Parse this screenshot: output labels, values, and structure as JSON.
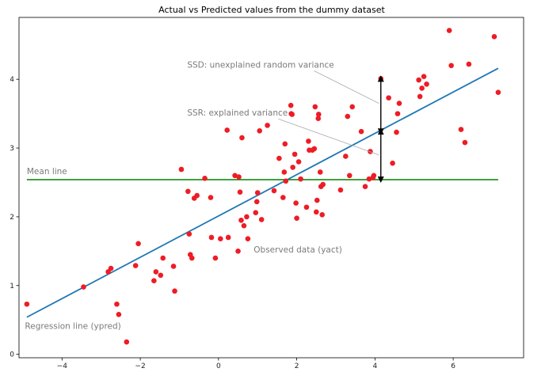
{
  "chart_data": {
    "type": "scatter",
    "title": "Actual vs Predicted values from the dummy dataset",
    "xlabel": "",
    "ylabel": "",
    "xlim": [
      -5.1,
      7.8
    ],
    "ylim": [
      -0.05,
      4.9
    ],
    "x_ticks": [
      -4,
      -2,
      0,
      2,
      4,
      6
    ],
    "y_ticks": [
      0,
      1,
      2,
      3,
      4
    ],
    "x_tick_labels": [
      "−4",
      "−2",
      "0",
      "2",
      "4",
      "6"
    ],
    "y_tick_labels": [
      "0",
      "1",
      "2",
      "3",
      "4"
    ],
    "grid": false,
    "colors": {
      "points": "#ee1c25",
      "regression": "#1f77b4",
      "mean": "#008000",
      "arrows": "#000000",
      "annotation_text": "#7a7a7a",
      "leader_lines": "#aaaaaa"
    },
    "points": [
      {
        "x": -4.9,
        "y": 0.73
      },
      {
        "x": -3.45,
        "y": 0.98
      },
      {
        "x": -2.82,
        "y": 1.2
      },
      {
        "x": -2.75,
        "y": 1.25
      },
      {
        "x": -2.6,
        "y": 0.73
      },
      {
        "x": -2.55,
        "y": 0.58
      },
      {
        "x": -2.35,
        "y": 0.18
      },
      {
        "x": -2.12,
        "y": 1.29
      },
      {
        "x": -2.05,
        "y": 1.61
      },
      {
        "x": -1.65,
        "y": 1.07
      },
      {
        "x": -1.6,
        "y": 1.2
      },
      {
        "x": -1.48,
        "y": 1.15
      },
      {
        "x": -1.42,
        "y": 1.4
      },
      {
        "x": -1.15,
        "y": 1.28
      },
      {
        "x": -1.12,
        "y": 0.92
      },
      {
        "x": -0.95,
        "y": 2.69
      },
      {
        "x": -0.78,
        "y": 2.37
      },
      {
        "x": -0.75,
        "y": 1.75
      },
      {
        "x": -0.72,
        "y": 1.45
      },
      {
        "x": -0.68,
        "y": 1.4
      },
      {
        "x": -0.62,
        "y": 2.27
      },
      {
        "x": -0.55,
        "y": 2.31
      },
      {
        "x": -0.35,
        "y": 2.56
      },
      {
        "x": -0.2,
        "y": 2.28
      },
      {
        "x": -0.18,
        "y": 1.7
      },
      {
        "x": -0.08,
        "y": 1.4
      },
      {
        "x": 0.05,
        "y": 1.68
      },
      {
        "x": 0.22,
        "y": 3.26
      },
      {
        "x": 0.25,
        "y": 1.7
      },
      {
        "x": 0.42,
        "y": 2.6
      },
      {
        "x": 0.5,
        "y": 1.5
      },
      {
        "x": 0.52,
        "y": 2.58
      },
      {
        "x": 0.55,
        "y": 2.36
      },
      {
        "x": 0.58,
        "y": 1.95
      },
      {
        "x": 0.6,
        "y": 3.15
      },
      {
        "x": 0.65,
        "y": 1.87
      },
      {
        "x": 0.72,
        "y": 2.0
      },
      {
        "x": 0.75,
        "y": 1.68
      },
      {
        "x": 0.95,
        "y": 2.06
      },
      {
        "x": 0.98,
        "y": 2.22
      },
      {
        "x": 1.0,
        "y": 2.35
      },
      {
        "x": 1.05,
        "y": 3.25
      },
      {
        "x": 1.1,
        "y": 1.96
      },
      {
        "x": 1.25,
        "y": 3.33
      },
      {
        "x": 1.42,
        "y": 2.38
      },
      {
        "x": 1.55,
        "y": 2.85
      },
      {
        "x": 1.65,
        "y": 2.28
      },
      {
        "x": 1.68,
        "y": 2.65
      },
      {
        "x": 1.7,
        "y": 3.06
      },
      {
        "x": 1.72,
        "y": 2.52
      },
      {
        "x": 1.85,
        "y": 3.62
      },
      {
        "x": 1.86,
        "y": 3.5
      },
      {
        "x": 1.88,
        "y": 3.49
      },
      {
        "x": 1.9,
        "y": 2.72
      },
      {
        "x": 1.95,
        "y": 2.91
      },
      {
        "x": 1.98,
        "y": 2.2
      },
      {
        "x": 2.0,
        "y": 1.98
      },
      {
        "x": 2.05,
        "y": 2.8
      },
      {
        "x": 2.1,
        "y": 2.55
      },
      {
        "x": 2.25,
        "y": 2.14
      },
      {
        "x": 2.3,
        "y": 3.1
      },
      {
        "x": 2.32,
        "y": 2.97
      },
      {
        "x": 2.4,
        "y": 2.97
      },
      {
        "x": 2.45,
        "y": 2.99
      },
      {
        "x": 2.47,
        "y": 3.6
      },
      {
        "x": 2.5,
        "y": 2.07
      },
      {
        "x": 2.52,
        "y": 2.24
      },
      {
        "x": 2.55,
        "y": 3.43
      },
      {
        "x": 2.56,
        "y": 3.49
      },
      {
        "x": 2.6,
        "y": 2.65
      },
      {
        "x": 2.62,
        "y": 2.44
      },
      {
        "x": 2.65,
        "y": 2.03
      },
      {
        "x": 2.67,
        "y": 2.47
      },
      {
        "x": 3.12,
        "y": 2.39
      },
      {
        "x": 3.25,
        "y": 2.88
      },
      {
        "x": 3.3,
        "y": 3.46
      },
      {
        "x": 3.35,
        "y": 2.6
      },
      {
        "x": 3.42,
        "y": 3.6
      },
      {
        "x": 3.65,
        "y": 3.24
      },
      {
        "x": 3.75,
        "y": 2.44
      },
      {
        "x": 3.85,
        "y": 2.55
      },
      {
        "x": 3.88,
        "y": 2.95
      },
      {
        "x": 3.95,
        "y": 2.57
      },
      {
        "x": 3.97,
        "y": 2.6
      },
      {
        "x": 4.15,
        "y": 4.01
      },
      {
        "x": 4.35,
        "y": 3.73
      },
      {
        "x": 4.45,
        "y": 2.78
      },
      {
        "x": 4.55,
        "y": 3.23
      },
      {
        "x": 4.58,
        "y": 3.5
      },
      {
        "x": 4.62,
        "y": 3.65
      },
      {
        "x": 5.12,
        "y": 3.99
      },
      {
        "x": 5.15,
        "y": 3.75
      },
      {
        "x": 5.2,
        "y": 3.87
      },
      {
        "x": 5.25,
        "y": 4.04
      },
      {
        "x": 5.32,
        "y": 3.93
      },
      {
        "x": 5.9,
        "y": 4.71
      },
      {
        "x": 5.95,
        "y": 4.2
      },
      {
        "x": 6.2,
        "y": 3.27
      },
      {
        "x": 6.3,
        "y": 3.08
      },
      {
        "x": 6.4,
        "y": 4.22
      },
      {
        "x": 7.05,
        "y": 4.62
      },
      {
        "x": 7.15,
        "y": 3.81
      }
    ],
    "regression_line": {
      "label": "Regression line (ypred)",
      "x": [
        -4.9,
        7.15
      ],
      "y": [
        0.54,
        4.16
      ]
    },
    "mean_line": {
      "label": "Mean line",
      "y": 2.54,
      "x": [
        -4.9,
        7.15
      ]
    },
    "arrow_x": 4.15,
    "ssd_arrow": {
      "y_from": 3.24,
      "y_to": 4.01
    },
    "ssr_arrow": {
      "y_from": 2.54,
      "y_to": 3.24
    },
    "annotations": [
      {
        "id": "ssd",
        "text": "SSD: unexplained random variance",
        "x": -0.8,
        "y": 4.17,
        "point_x": 4.1,
        "point_y": 3.65
      },
      {
        "id": "ssr",
        "text": "SSR: explained variance",
        "x": -0.8,
        "y": 3.47,
        "point_x": 4.1,
        "point_y": 2.9
      },
      {
        "id": "observed",
        "text": "Observed data (yact)",
        "x": 0.9,
        "y": 1.48
      },
      {
        "id": "mean",
        "text": "Mean line",
        "x": -4.9,
        "y": 2.62
      },
      {
        "id": "regression",
        "text": "Regression line (ypred)",
        "x": -4.95,
        "y": 0.37
      }
    ]
  }
}
